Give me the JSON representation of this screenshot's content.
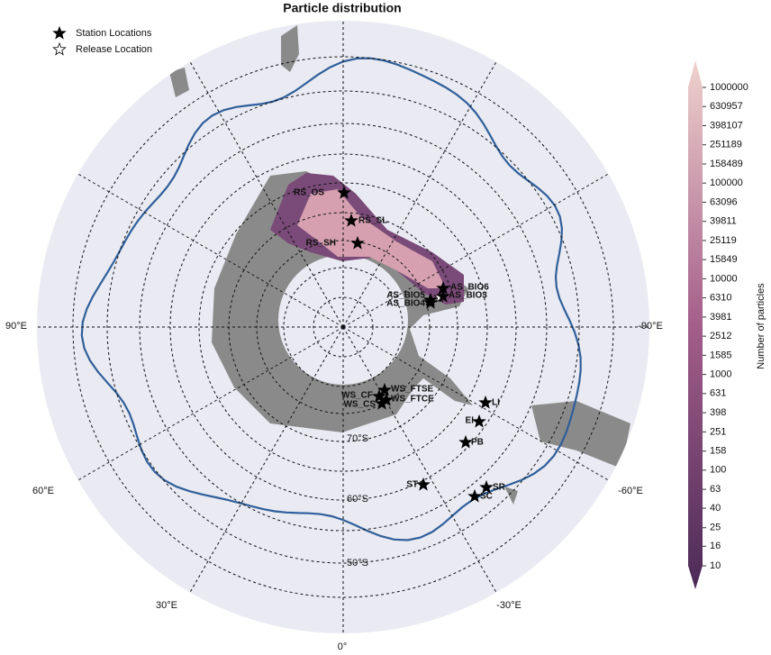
{
  "title": "Particle distribution",
  "legend": [
    "Station Locations",
    "Release Location"
  ],
  "stations": [
    "RS_OS",
    "RS_SL",
    "RS_SH",
    "AS_BIO6",
    "AS_BIO5",
    "AS_BIO4",
    "AS_BIO3",
    "WS_FTSE",
    "WS_CF",
    "WS_FTCE",
    "WS_CS",
    "LI",
    "EI",
    "PB",
    "ST",
    "SR",
    "SC"
  ],
  "longitude_labels": [
    "90°E",
    "-90°E",
    "60°E",
    "-60°E",
    "30°E",
    "-30°E",
    "0°"
  ],
  "latitude_labels": [
    "70°S",
    "60°S",
    "50°S"
  ],
  "colorbar": {
    "label": "Number of particles",
    "scale": "log",
    "lim": [
      10,
      1000000
    ],
    "ticks": [
      1000000,
      630957,
      398107,
      251189,
      158489,
      100000,
      63096,
      39811,
      25119,
      15849,
      10000,
      6310,
      3981,
      2512,
      1585,
      1000,
      631,
      398,
      251,
      158,
      100,
      63,
      40,
      25,
      16,
      10
    ],
    "colors": [
      "#4b2a57",
      "#a45e8a",
      "#efd2cd"
    ]
  }
}
